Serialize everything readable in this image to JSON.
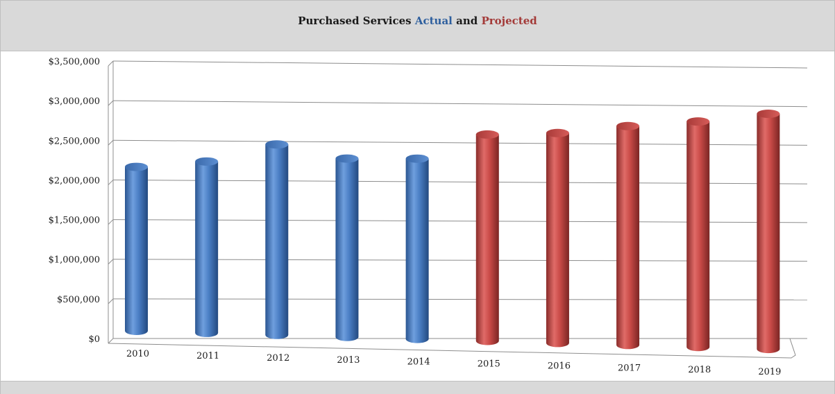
{
  "title": {
    "prefix": "Purchased Services",
    "actual": "Actual",
    "and": "and",
    "projected": "Projected"
  },
  "colors": {
    "actual": "#4a7ec4",
    "projected": "#c94a47",
    "band": "#d9d9d9",
    "grid": "#8c8c8c"
  },
  "chart_data": {
    "type": "bar",
    "title": "Purchased Services Actual and Projected",
    "xlabel": "",
    "ylabel": "",
    "ylim": [
      0,
      3500000
    ],
    "yticks": [
      "$0",
      "$500,000",
      "$1,000,000",
      "$1,500,000",
      "$2,000,000",
      "$2,500,000",
      "$3,000,000",
      "$3,500,000"
    ],
    "grid": true,
    "categories": [
      "2010",
      "2011",
      "2012",
      "2013",
      "2014",
      "2015",
      "2016",
      "2017",
      "2018",
      "2019"
    ],
    "series": [
      {
        "values": [
          2100000,
          2200000,
          2450000,
          2300000,
          2330000,
          null,
          null,
          null,
          null,
          null
        ]
      },
      {
        "values": [
          null,
          null,
          null,
          null,
          null,
          2670000,
          2720000,
          2840000,
          2930000,
          3060000
        ]
      }
    ]
  }
}
